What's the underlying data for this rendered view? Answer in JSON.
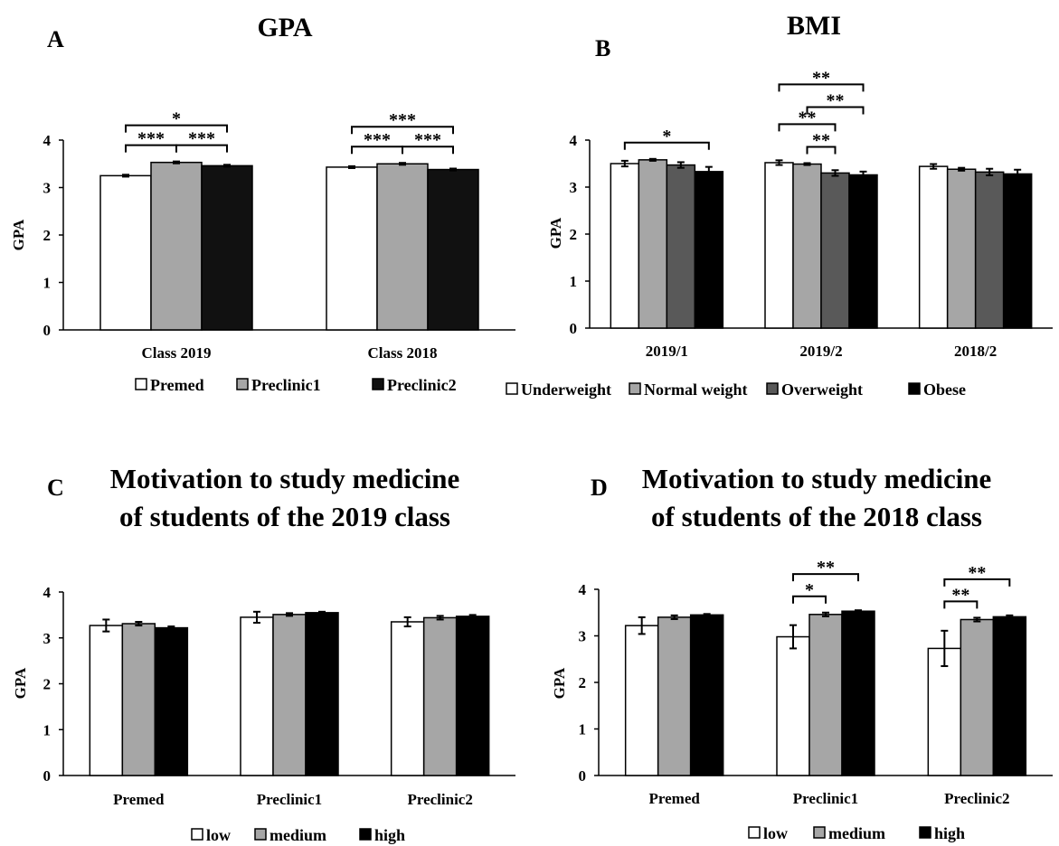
{
  "chart_data": [
    {
      "panel_letter": "A",
      "title": [
        "GPA"
      ],
      "type": "bar",
      "ylabel": "GPA",
      "ylim": [
        0,
        4
      ],
      "yticks": [
        "0",
        "1",
        "2",
        "3",
        "4"
      ],
      "categories": [
        "Class 2019",
        "Class 2018"
      ],
      "series": [
        {
          "name": "Premed",
          "color": "#ffffff",
          "values": [
            3.25,
            3.43
          ],
          "errors": [
            0.02,
            0.02
          ]
        },
        {
          "name": "Preclinic1",
          "color": "#a6a6a6",
          "values": [
            3.53,
            3.5
          ],
          "errors": [
            0.02,
            0.02
          ]
        },
        {
          "name": "Preclinic2",
          "color": "#111111",
          "values": [
            3.46,
            3.38
          ],
          "errors": [
            0.02,
            0.02
          ]
        }
      ],
      "significance": [
        {
          "category": 0,
          "from": 0,
          "to": 1,
          "label": "***",
          "level": 0
        },
        {
          "category": 0,
          "from": 1,
          "to": 2,
          "label": "***",
          "level": 0
        },
        {
          "category": 0,
          "from": 0,
          "to": 2,
          "label": "*",
          "level": 1
        },
        {
          "category": 1,
          "from": 0,
          "to": 1,
          "label": "***",
          "level": 0
        },
        {
          "category": 1,
          "from": 1,
          "to": 2,
          "label": "***",
          "level": 0
        },
        {
          "category": 1,
          "from": 0,
          "to": 2,
          "label": "***",
          "level": 1
        }
      ]
    },
    {
      "panel_letter": "B",
      "title": [
        "BMI"
      ],
      "type": "bar",
      "ylabel": "GPA",
      "ylim": [
        0,
        4
      ],
      "yticks": [
        "0",
        "1",
        "2",
        "3",
        "4"
      ],
      "categories": [
        "2019/1",
        "2019/2",
        "2018/2"
      ],
      "series": [
        {
          "name": "Underweight",
          "color": "#ffffff",
          "values": [
            3.5,
            3.52,
            3.44
          ],
          "errors": [
            0.06,
            0.05,
            0.05
          ]
        },
        {
          "name": "Normal weight",
          "color": "#a6a6a6",
          "values": [
            3.58,
            3.49,
            3.38
          ],
          "errors": [
            0.02,
            0.02,
            0.03
          ]
        },
        {
          "name": "Overweight",
          "color": "#595959",
          "values": [
            3.47,
            3.3,
            3.32
          ],
          "errors": [
            0.06,
            0.06,
            0.07
          ]
        },
        {
          "name": "Obese",
          "color": "#000000",
          "values": [
            3.33,
            3.26,
            3.28
          ],
          "errors": [
            0.1,
            0.07,
            0.09
          ]
        }
      ],
      "significance": [
        {
          "category": 0,
          "from": 0,
          "to": 3,
          "label": "*",
          "level": 0
        },
        {
          "category": 1,
          "from": 1,
          "to": 2,
          "label": "**",
          "level": 0
        },
        {
          "category": 1,
          "from": 0,
          "to": 2,
          "label": "**",
          "level": 1
        },
        {
          "category": 1,
          "from": 1,
          "to": 3,
          "label": "**",
          "level": 2
        },
        {
          "category": 1,
          "from": 0,
          "to": 3,
          "label": "**",
          "level": 3
        }
      ]
    },
    {
      "panel_letter": "C",
      "title": [
        "Motivation to study medicine",
        "of students of the 2019 class"
      ],
      "type": "bar",
      "ylabel": "GPA",
      "ylim": [
        0,
        4
      ],
      "yticks": [
        "0",
        "1",
        "2",
        "3",
        "4"
      ],
      "categories": [
        "Premed",
        "Preclinic1",
        "Preclinic2"
      ],
      "series": [
        {
          "name": "low",
          "color": "#ffffff",
          "values": [
            3.27,
            3.45,
            3.35
          ],
          "errors": [
            0.13,
            0.12,
            0.1
          ]
        },
        {
          "name": "medium",
          "color": "#a6a6a6",
          "values": [
            3.31,
            3.51,
            3.44
          ],
          "errors": [
            0.04,
            0.03,
            0.04
          ]
        },
        {
          "name": "high",
          "color": "#000000",
          "values": [
            3.22,
            3.55,
            3.47
          ],
          "errors": [
            0.03,
            0.02,
            0.03
          ]
        }
      ],
      "significance": []
    },
    {
      "panel_letter": "D",
      "title": [
        "Motivation to study medicine",
        "of students of the 2018 class"
      ],
      "type": "bar",
      "ylabel": "GPA",
      "ylim": [
        0,
        4
      ],
      "yticks": [
        "0",
        "1",
        "2",
        "3",
        "4"
      ],
      "categories": [
        "Premed",
        "Preclinic1",
        "Preclinic2"
      ],
      "series": [
        {
          "name": "low",
          "color": "#ffffff",
          "values": [
            3.22,
            2.98,
            2.73
          ],
          "errors": [
            0.18,
            0.25,
            0.38
          ]
        },
        {
          "name": "medium",
          "color": "#a6a6a6",
          "values": [
            3.4,
            3.46,
            3.35
          ],
          "errors": [
            0.04,
            0.04,
            0.04
          ]
        },
        {
          "name": "high",
          "color": "#000000",
          "values": [
            3.45,
            3.53,
            3.41
          ],
          "errors": [
            0.02,
            0.02,
            0.03
          ]
        }
      ],
      "significance": [
        {
          "category": 1,
          "from": 0,
          "to": 1,
          "label": "*",
          "level": 0
        },
        {
          "category": 1,
          "from": 0,
          "to": 2,
          "label": "**",
          "level": 1
        },
        {
          "category": 2,
          "from": 0,
          "to": 1,
          "label": "**",
          "level": 0
        },
        {
          "category": 2,
          "from": 0,
          "to": 2,
          "label": "**",
          "level": 1
        }
      ]
    }
  ]
}
